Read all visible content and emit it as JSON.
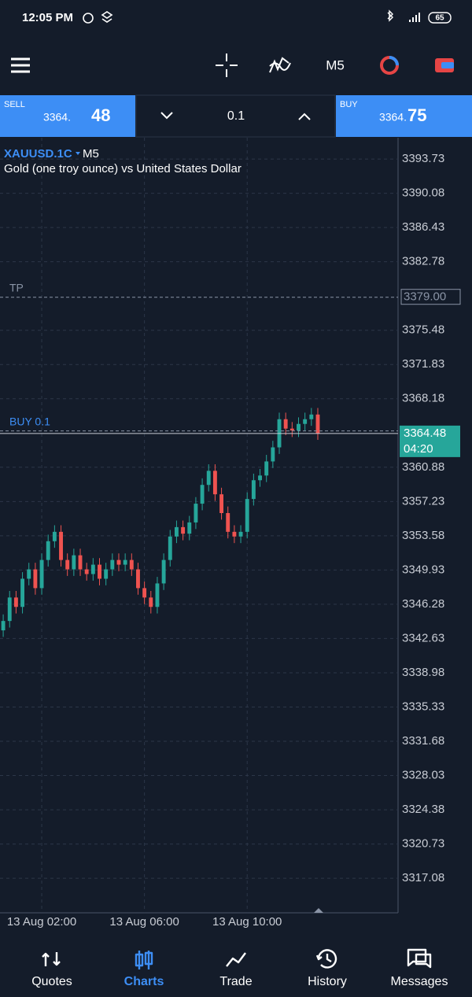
{
  "status_bar": {
    "time": "12:05 PM",
    "battery": "65"
  },
  "toolbar": {
    "timeframe": "M5"
  },
  "trade_panel": {
    "sell": {
      "label": "SELL",
      "price_main": "3364.",
      "price_big": "48"
    },
    "volume": "0.1",
    "buy": {
      "label": "BUY",
      "price_main": "3364.",
      "price_big": "75"
    }
  },
  "chart_data": {
    "type": "candlestick",
    "symbol": "XAUUSD.1C",
    "timeframe": "M5",
    "description": "Gold (one troy ounce) vs United States Dollar",
    "ylim": [
      3313.4,
      3396.0
    ],
    "yticks": [
      3393.73,
      3390.08,
      3386.43,
      3382.78,
      3375.48,
      3371.83,
      3368.18,
      3360.88,
      3357.23,
      3353.58,
      3349.93,
      3346.28,
      3342.63,
      3338.98,
      3335.33,
      3331.68,
      3328.03,
      3324.38,
      3320.73,
      3317.08
    ],
    "xlim": [
      -0.5,
      61.5
    ],
    "xticks": [
      {
        "value": 6,
        "label": "13 Aug 02:00"
      },
      {
        "value": 22,
        "label": "13 Aug 06:00"
      },
      {
        "value": 38,
        "label": "13 Aug 10:00"
      }
    ],
    "grid": true,
    "up_color": "#26a69a",
    "down_color": "#ef5350",
    "open": [
      3343.5,
      3344.5,
      3347,
      3346,
      3349,
      3350,
      3348,
      3351,
      3353,
      3354,
      3351,
      3350,
      3351.5,
      3350,
      3349.5,
      3350.5,
      3349,
      3350,
      3351,
      3350.5,
      3351,
      3350,
      3348,
      3347,
      3346,
      3348.5,
      3351,
      3353.5,
      3354.5,
      3353.8,
      3355,
      3357,
      3359,
      3360.5,
      3358,
      3356,
      3354,
      3353.5,
      3354,
      3357.5,
      3359.5,
      3360,
      3361.5,
      3363,
      3366,
      3365,
      3364.8,
      3365.5,
      3366,
      3366.5
    ],
    "high": [
      3345.2,
      3347.7,
      3347.7,
      3349.7,
      3350.7,
      3350.7,
      3351.7,
      3353.7,
      3354.7,
      3354.7,
      3351.7,
      3352.2,
      3352.2,
      3350.7,
      3351.2,
      3351.2,
      3350.7,
      3351.7,
      3351.7,
      3351.7,
      3351.7,
      3350.7,
      3348.7,
      3347.7,
      3349.2,
      3351.7,
      3354.2,
      3355.2,
      3355.2,
      3355.7,
      3357.7,
      3359.7,
      3361.2,
      3361.2,
      3358.7,
      3356.7,
      3354.7,
      3354.7,
      3358.2,
      3360.2,
      3360.7,
      3362.2,
      3363.7,
      3366.7,
      3366.7,
      3365.7,
      3366.2,
      3366.7,
      3367.2,
      3367.2
    ],
    "low": [
      3342.8,
      3343.8,
      3345.3,
      3345.3,
      3348.3,
      3347.3,
      3347.3,
      3350.3,
      3352.3,
      3350.3,
      3349.3,
      3349.3,
      3349.3,
      3348.8,
      3348.8,
      3348.3,
      3348.3,
      3349.3,
      3349.8,
      3349.8,
      3349.3,
      3347.3,
      3346.3,
      3345.3,
      3345.3,
      3347.8,
      3350.3,
      3352.8,
      3353.1,
      3353.1,
      3354.3,
      3356.3,
      3358.3,
      3357.3,
      3355.3,
      3353.3,
      3352.8,
      3352.8,
      3353.3,
      3356.8,
      3358.8,
      3359.3,
      3360.8,
      3362.3,
      3364.3,
      3364.1,
      3364.1,
      3364.8,
      3365.3,
      3363.8
    ],
    "close": [
      3344.5,
      3347,
      3346,
      3349,
      3350,
      3348,
      3351,
      3353,
      3354,
      3351,
      3350,
      3351.5,
      3350,
      3349.5,
      3350.5,
      3349,
      3350,
      3351,
      3350.5,
      3351,
      3350,
      3348,
      3347,
      3346,
      3348.5,
      3351,
      3353.5,
      3354.5,
      3353.8,
      3355,
      3357,
      3359,
      3360.5,
      3358,
      3356,
      3354,
      3353.5,
      3354,
      3357.5,
      3359.5,
      3360,
      3361.5,
      3363,
      3366,
      3365,
      3364.8,
      3365.5,
      3366,
      3366.5,
      3364.5
    ],
    "tp": {
      "label": "TP",
      "level": {
        "value": 3379,
        "label": "3379.00"
      }
    },
    "position": {
      "label": "BUY 0.1",
      "level": 3364.75
    },
    "last_price": 3364.48,
    "countdown": "04:20"
  },
  "nav": [
    {
      "label": "Quotes"
    },
    {
      "label": "Charts"
    },
    {
      "label": "Trade"
    },
    {
      "label": "History"
    },
    {
      "label": "Messages"
    }
  ]
}
